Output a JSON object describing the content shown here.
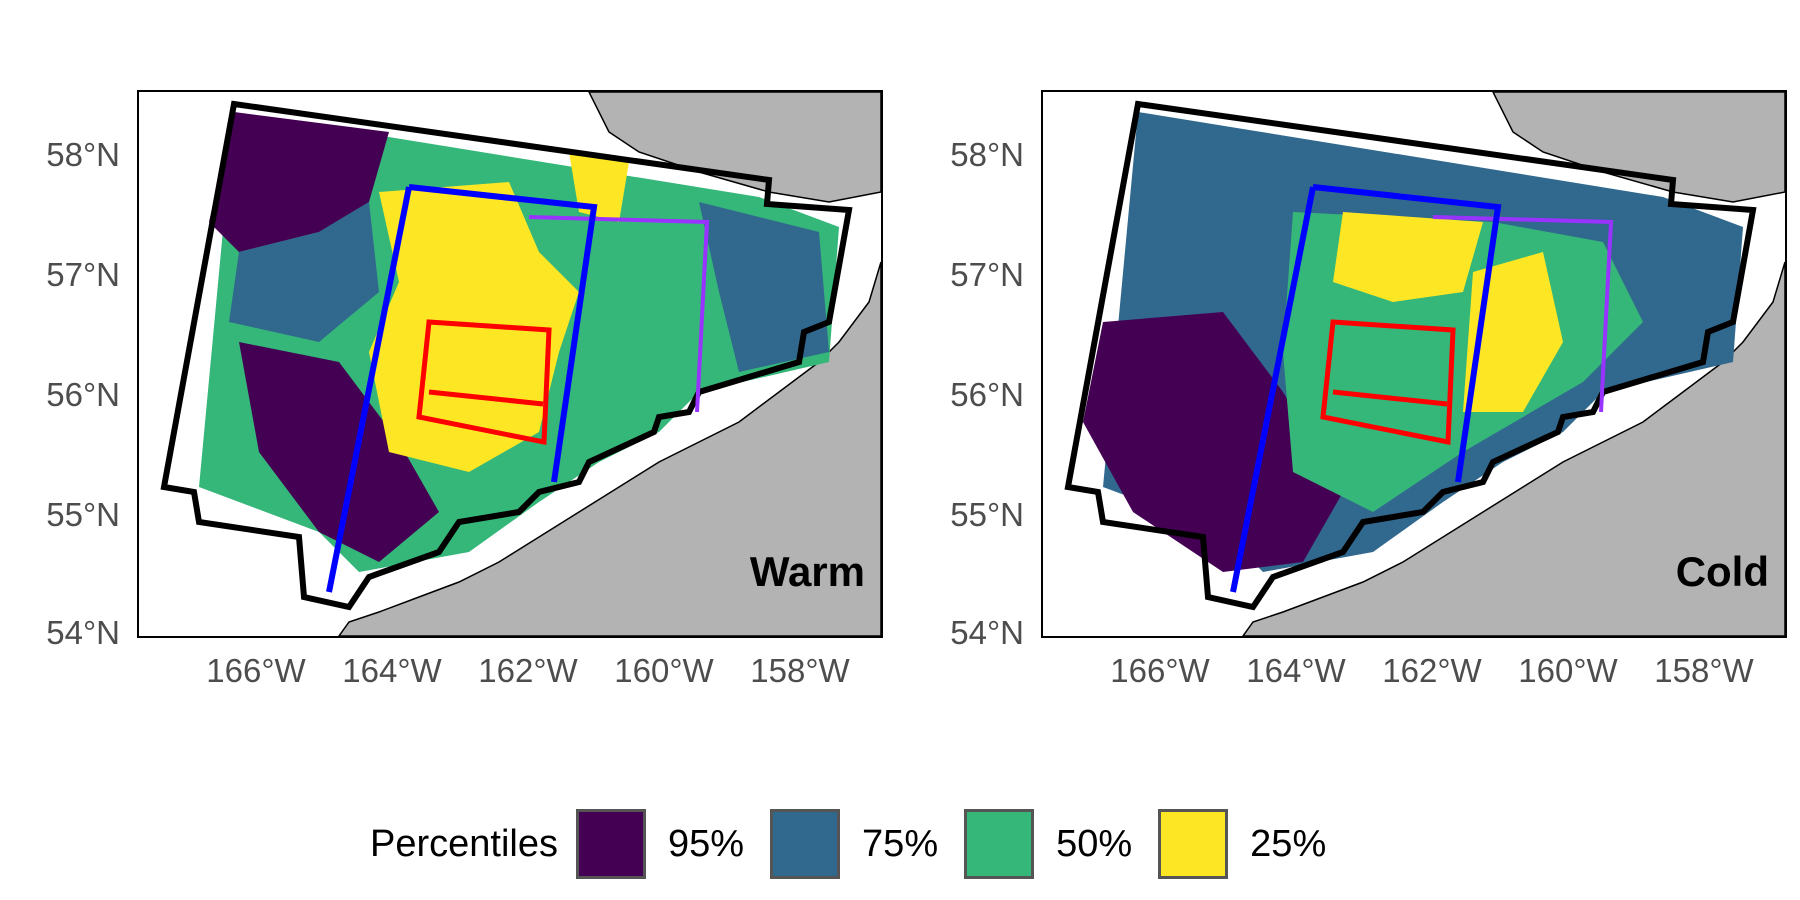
{
  "panels": [
    {
      "id": "warm",
      "label": "Warm"
    },
    {
      "id": "cold",
      "label": "Cold"
    }
  ],
  "axes": {
    "y_ticks": [
      "58°N",
      "57°N",
      "56°N",
      "55°N",
      "54°N"
    ],
    "x_ticks": [
      "166°W",
      "164°W",
      "162°W",
      "160°W",
      "158°W"
    ],
    "lon_range": [
      -168,
      -157
    ],
    "lat_range": [
      54,
      58.5
    ]
  },
  "legend": {
    "title": "Percentiles",
    "items": [
      {
        "label": "95%",
        "color": "#440154"
      },
      {
        "label": "75%",
        "color": "#31688e"
      },
      {
        "label": "50%",
        "color": "#35b779"
      },
      {
        "label": "25%",
        "color": "#fde725"
      }
    ]
  },
  "colors": {
    "land": "#b3b3b3",
    "survey_outline": "#000000",
    "blue_box": "#0000ff",
    "purple_box": "#9933ff",
    "red_box": "#ff0000"
  }
}
